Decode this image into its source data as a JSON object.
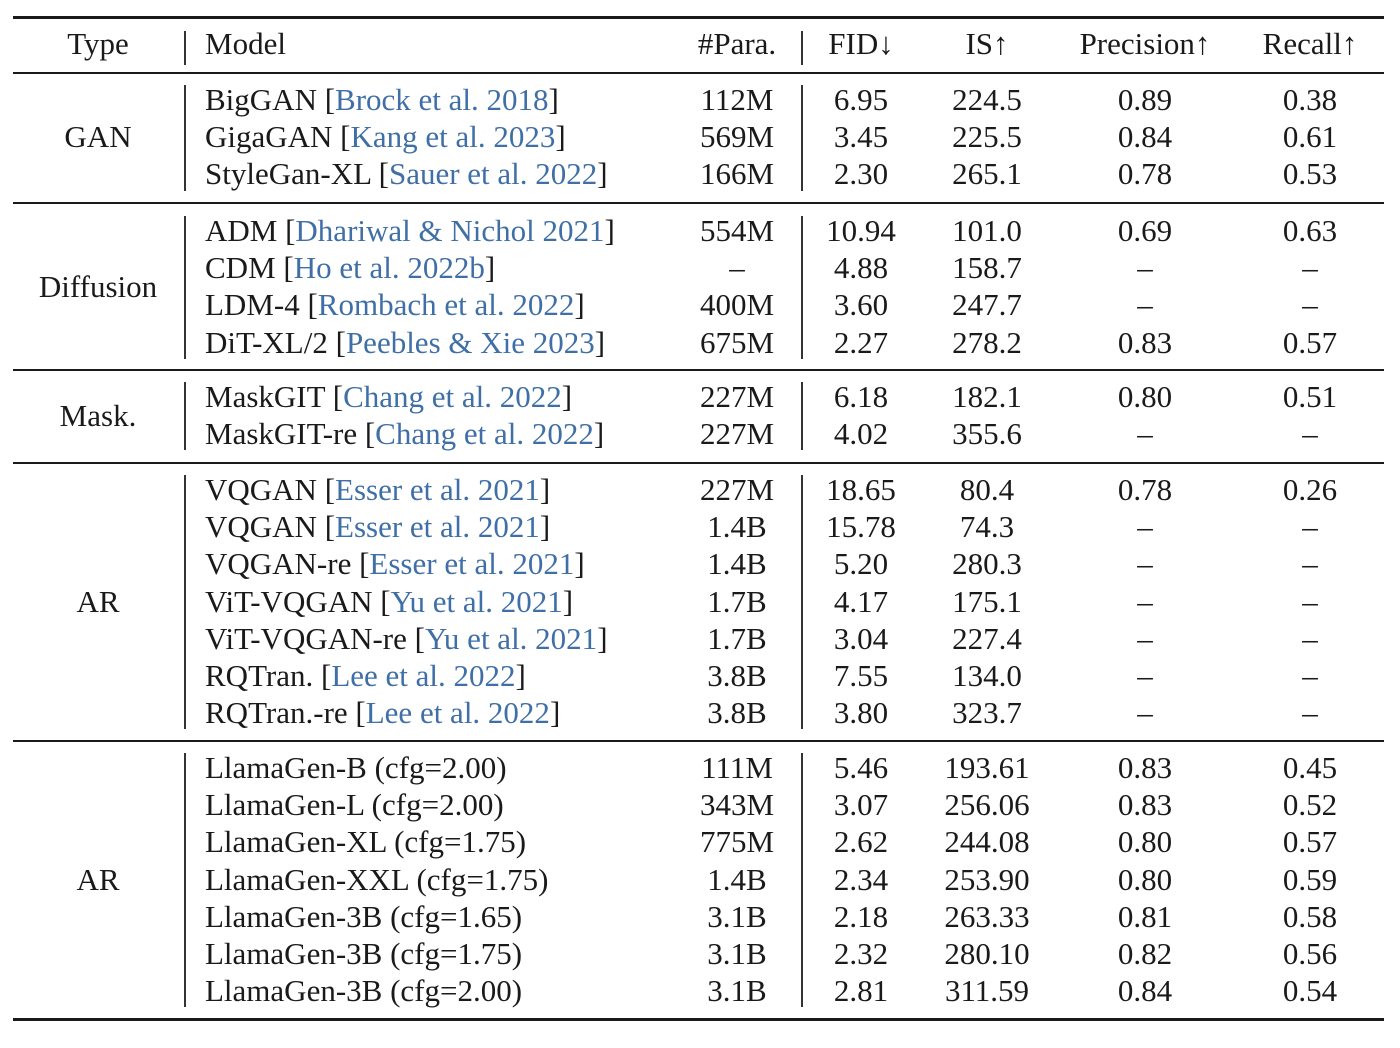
{
  "colors": {
    "text": "#1a1a1a",
    "citation": "#3f6fa6",
    "rule": "#1a1a1a"
  },
  "header": {
    "type": "Type",
    "model": "Model",
    "params": "#Para.",
    "fid": "FID↓",
    "is": "IS↑",
    "precision": "Precision↑",
    "recall": "Recall↑"
  },
  "groups": [
    {
      "type": "GAN",
      "rows": [
        {
          "name": "BigGAN",
          "cite": "Brock et al. 2018",
          "params": "112M",
          "fid": "6.95",
          "is": "224.5",
          "precision": "0.89",
          "recall": "0.38"
        },
        {
          "name": "GigaGAN",
          "cite": "Kang et al. 2023",
          "params": "569M",
          "fid": "3.45",
          "is": "225.5",
          "precision": "0.84",
          "recall": "0.61"
        },
        {
          "name": "StyleGan-XL",
          "cite": "Sauer et al. 2022",
          "params": "166M",
          "fid": "2.30",
          "is": "265.1",
          "precision": "0.78",
          "recall": "0.53"
        }
      ]
    },
    {
      "type": "Diffusion",
      "rows": [
        {
          "name": "ADM",
          "cite": "Dhariwal & Nichol 2021",
          "params": "554M",
          "fid": "10.94",
          "is": "101.0",
          "precision": "0.69",
          "recall": "0.63"
        },
        {
          "name": "CDM",
          "cite": "Ho et al. 2022b",
          "params": "–",
          "fid": "4.88",
          "is": "158.7",
          "precision": "–",
          "recall": "–"
        },
        {
          "name": "LDM-4",
          "cite": "Rombach et al. 2022",
          "params": "400M",
          "fid": "3.60",
          "is": "247.7",
          "precision": "–",
          "recall": "–"
        },
        {
          "name": "DiT-XL/2",
          "cite": "Peebles & Xie 2023",
          "params": "675M",
          "fid": "2.27",
          "is": "278.2",
          "precision": "0.83",
          "recall": "0.57"
        }
      ]
    },
    {
      "type": "Mask.",
      "rows": [
        {
          "name": "MaskGIT",
          "cite": "Chang et al. 2022",
          "params": "227M",
          "fid": "6.18",
          "is": "182.1",
          "precision": "0.80",
          "recall": "0.51"
        },
        {
          "name": "MaskGIT-re",
          "cite": "Chang et al. 2022",
          "params": "227M",
          "fid": "4.02",
          "is": "355.6",
          "precision": "–",
          "recall": "–"
        }
      ]
    },
    {
      "type": "AR",
      "rows": [
        {
          "name": "VQGAN",
          "cite": "Esser et al. 2021",
          "params": "227M",
          "fid": "18.65",
          "is": "80.4",
          "precision": "0.78",
          "recall": "0.26"
        },
        {
          "name": "VQGAN",
          "cite": "Esser et al. 2021",
          "params": "1.4B",
          "fid": "15.78",
          "is": "74.3",
          "precision": "–",
          "recall": "–"
        },
        {
          "name": "VQGAN-re",
          "cite": "Esser et al. 2021",
          "params": "1.4B",
          "fid": "5.20",
          "is": "280.3",
          "precision": "–",
          "recall": "–"
        },
        {
          "name": "ViT-VQGAN",
          "cite": "Yu et al. 2021",
          "params": "1.7B",
          "fid": "4.17",
          "is": "175.1",
          "precision": "–",
          "recall": "–"
        },
        {
          "name": "ViT-VQGAN-re",
          "cite": "Yu et al. 2021",
          "params": "1.7B",
          "fid": "3.04",
          "is": "227.4",
          "precision": "–",
          "recall": "–"
        },
        {
          "name": "RQTran.",
          "cite": "Lee et al. 2022",
          "params": "3.8B",
          "fid": "7.55",
          "is": "134.0",
          "precision": "–",
          "recall": "–"
        },
        {
          "name": "RQTran.-re",
          "cite": "Lee et al. 2022",
          "params": "3.8B",
          "fid": "3.80",
          "is": "323.7",
          "precision": "–",
          "recall": "–"
        }
      ]
    },
    {
      "type": "AR",
      "rows": [
        {
          "name": "LlamaGen-B (cfg=2.00)",
          "cite": "",
          "params": "111M",
          "fid": "5.46",
          "is": "193.61",
          "precision": "0.83",
          "recall": "0.45"
        },
        {
          "name": "LlamaGen-L (cfg=2.00)",
          "cite": "",
          "params": "343M",
          "fid": "3.07",
          "is": "256.06",
          "precision": "0.83",
          "recall": "0.52"
        },
        {
          "name": "LlamaGen-XL (cfg=1.75)",
          "cite": "",
          "params": "775M",
          "fid": "2.62",
          "is": "244.08",
          "precision": "0.80",
          "recall": "0.57"
        },
        {
          "name": "LlamaGen-XXL (cfg=1.75)",
          "cite": "",
          "params": "1.4B",
          "fid": "2.34",
          "is": "253.90",
          "precision": "0.80",
          "recall": "0.59"
        },
        {
          "name": "LlamaGen-3B (cfg=1.65)",
          "cite": "",
          "params": "3.1B",
          "fid": "2.18",
          "is": "263.33",
          "precision": "0.81",
          "recall": "0.58"
        },
        {
          "name": "LlamaGen-3B (cfg=1.75)",
          "cite": "",
          "params": "3.1B",
          "fid": "2.32",
          "is": "280.10",
          "precision": "0.82",
          "recall": "0.56"
        },
        {
          "name": "LlamaGen-3B (cfg=2.00)",
          "cite": "",
          "params": "3.1B",
          "fid": "2.81",
          "is": "311.59",
          "precision": "0.84",
          "recall": "0.54"
        }
      ]
    }
  ]
}
